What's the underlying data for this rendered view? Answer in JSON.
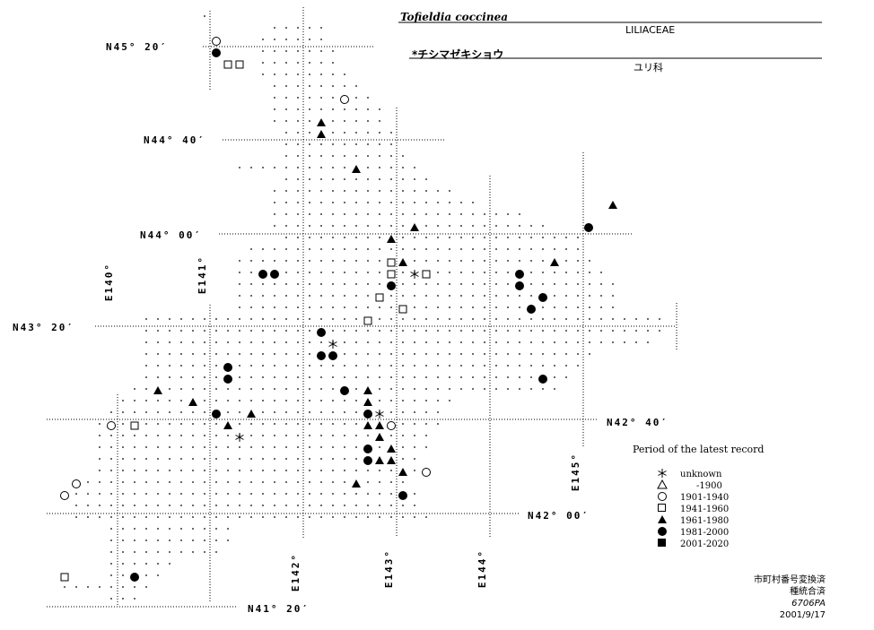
{
  "header": {
    "scientific_name": "Tofieldia coccinea",
    "family": "LILIACEAE",
    "japanese_name": "*チシマゼキショウ",
    "japanese_family": "ユリ科"
  },
  "latitude_labels": [
    "N45° 20′",
    "N44° 40′",
    "N44° 00′",
    "N43° 20′",
    "N42° 40′",
    "N42° 00′",
    "N41° 20′"
  ],
  "longitude_labels": [
    "E140°",
    "E141°",
    "E142°",
    "E143°",
    "E144°",
    "E145°"
  ],
  "legend": {
    "title": "Period of the latest record",
    "items": [
      {
        "symbol": "asterisk",
        "label": "unknown"
      },
      {
        "symbol": "open-triangle",
        "label": "-1900"
      },
      {
        "symbol": "open-circle",
        "label": "1901-1940"
      },
      {
        "symbol": "open-square",
        "label": "1941-1960"
      },
      {
        "symbol": "filled-triangle",
        "label": "1961-1980"
      },
      {
        "symbol": "filled-circle",
        "label": "1981-2000"
      },
      {
        "symbol": "filled-square",
        "label": "2001-2020"
      }
    ]
  },
  "notes": {
    "line1": "市町村番号変換済",
    "line2": "種統合済",
    "line3": "6706PA",
    "line4": "2001/9/17"
  }
}
